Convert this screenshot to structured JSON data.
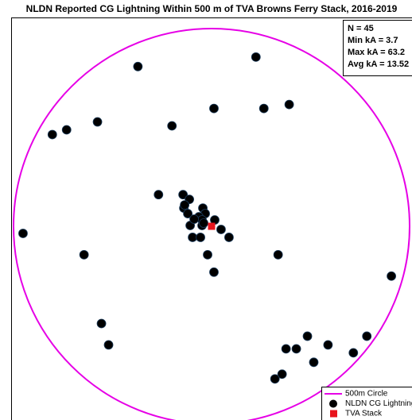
{
  "chart_data": {
    "type": "scatter",
    "title": "NLDN Reported CG Lightning Within 500 m of TVA Browns Ferry Stack, 2016-2019",
    "annotations": [
      "N = 45",
      "Min kA = 3.7",
      "Max kA = 63.2",
      "Avg kA = 13.52"
    ],
    "xlim": [
      -500,
      500
    ],
    "ylim": [
      -500,
      500
    ],
    "legend": "lower right",
    "series": [
      {
        "name": "500m Circle",
        "color": "#e600e6",
        "marker": "circle-line"
      },
      {
        "name": "NLDN CG Lightning",
        "color": "#000000",
        "marker": "dot",
        "x": [
          -186,
          112,
          6,
          132,
          196,
          -288,
          -100,
          -366,
          -402,
          -134,
          -72,
          -56,
          -70,
          -60,
          -22,
          -16,
          8,
          -54,
          -24,
          -32,
          -48,
          -28,
          24,
          44,
          -476,
          -322,
          -10,
          168,
          6,
          454,
          -278,
          -260,
          242,
          188,
          214,
          294,
          392,
          358,
          258,
          178,
          160,
          -24,
          -68,
          -20,
          -44
        ],
        "values": [
          404,
          428,
          298,
          298,
          308,
          264,
          254,
          244,
          232,
          80,
          80,
          68,
          46,
          32,
          46,
          32,
          16,
          2,
          2,
          24,
          -28,
          -28,
          -8,
          -28,
          -18,
          -72,
          -72,
          -72,
          -116,
          -126,
          -246,
          -300,
          -278,
          -310,
          -310,
          -300,
          -278,
          -320,
          -344,
          -374,
          -386,
          16,
          54,
          8,
          18
        ]
      },
      {
        "name": "TVA Stack",
        "color": "#e8141c",
        "marker": "square",
        "x": [
          0
        ],
        "values": [
          0
        ]
      }
    ]
  }
}
